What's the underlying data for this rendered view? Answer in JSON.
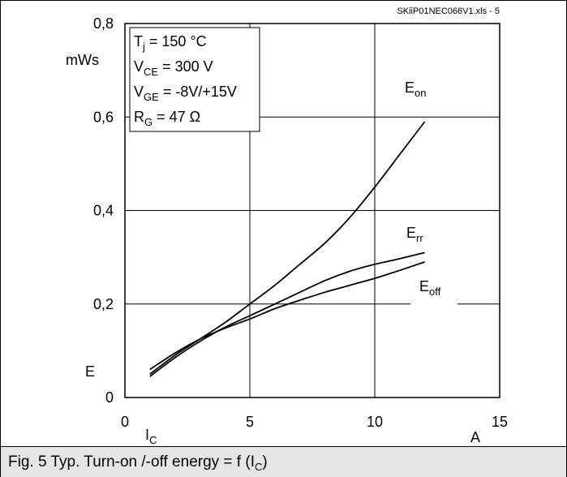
{
  "source_tag": "SKiiP01NEC066V1.xls - 5",
  "caption": {
    "prefix": "Fig. 5 Typ. Turn-on /-off energy = f (I",
    "sub": "C",
    "suffix": ")"
  },
  "conditions": [
    {
      "sym": "T",
      "sub": "j",
      "text": " = 150 °C"
    },
    {
      "sym": "V",
      "sub": "CE",
      "text": " = 300 V"
    },
    {
      "sym": "V",
      "sub": "GE",
      "text": " = -8V/+15V"
    },
    {
      "sym": "R",
      "sub": "G",
      "text": " = 47 Ω"
    }
  ],
  "chart_data": {
    "type": "line",
    "xlabel": {
      "sym": "I",
      "sub": "C"
    },
    "xunit": "A",
    "ylabel": "E",
    "yunit": "mWs",
    "xlim": [
      0,
      15
    ],
    "ylim": [
      0,
      0.8
    ],
    "xticks": [
      0,
      5,
      10,
      15
    ],
    "xtick_labels": [
      "0",
      "5",
      "10",
      "15"
    ],
    "yticks": [
      0,
      0.2,
      0.4,
      0.6,
      0.8
    ],
    "ytick_labels": [
      "0",
      "0,2",
      "0,4",
      "0,6",
      "0,8"
    ],
    "grid": true,
    "series": [
      {
        "name": "E_on",
        "label_sym": "E",
        "label_sub": "on",
        "x": [
          1,
          2,
          3,
          4,
          5,
          6,
          7,
          8,
          9,
          10,
          11,
          12
        ],
        "y": [
          0.05,
          0.09,
          0.125,
          0.16,
          0.2,
          0.24,
          0.285,
          0.33,
          0.385,
          0.45,
          0.52,
          0.59
        ]
      },
      {
        "name": "E_rr",
        "label_sym": "E",
        "label_sub": "rr",
        "x": [
          1,
          2,
          3,
          4,
          5,
          6,
          7,
          8,
          9,
          10,
          11,
          12
        ],
        "y": [
          0.045,
          0.085,
          0.12,
          0.15,
          0.175,
          0.2,
          0.225,
          0.25,
          0.27,
          0.285,
          0.297,
          0.31
        ]
      },
      {
        "name": "E_off",
        "label_sym": "E",
        "label_sub": "off",
        "x": [
          1,
          2,
          3,
          4,
          5,
          6,
          7,
          8,
          9,
          10,
          11,
          12
        ],
        "y": [
          0.06,
          0.095,
          0.125,
          0.148,
          0.168,
          0.19,
          0.208,
          0.225,
          0.24,
          0.255,
          0.272,
          0.29
        ]
      }
    ]
  }
}
